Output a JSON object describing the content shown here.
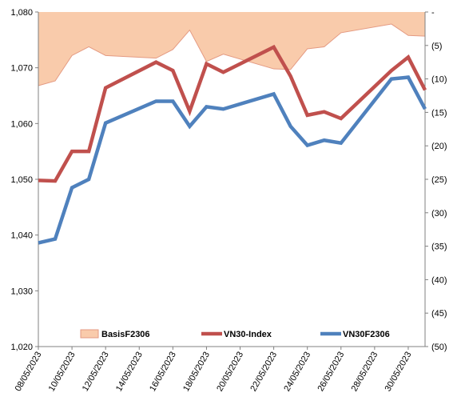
{
  "chart_data": {
    "type": "line",
    "title": "",
    "xlabel": "",
    "ylabel": "",
    "y2label": "",
    "grid": false,
    "legend_position": "bottom",
    "x": [
      "08/05/2023",
      "09/05/2023",
      "10/05/2023",
      "11/05/2023",
      "12/05/2023",
      "15/05/2023",
      "16/05/2023",
      "17/05/2023",
      "18/05/2023",
      "19/05/2023",
      "22/05/2023",
      "23/05/2023",
      "24/05/2023",
      "25/05/2023",
      "26/05/2023",
      "29/05/2023",
      "30/05/2023",
      "31/05/2023"
    ],
    "x_tick_labels": [
      "08/05/2023",
      "10/05/2023",
      "12/05/2023",
      "14/05/2023",
      "16/05/2023",
      "18/05/2023",
      "20/05/2023",
      "22/05/2023",
      "24/05/2023",
      "26/05/2023",
      "28/05/2023",
      "30/05/2023"
    ],
    "x_range": [
      "08/05/2023",
      "31/05/2023"
    ],
    "ylim_left": [
      1020,
      1080
    ],
    "y_ticks_left": [
      "1,020",
      "1,030",
      "1,040",
      "1,050",
      "1,060",
      "1,070",
      "1,080"
    ],
    "ylim_right": [
      -50,
      0
    ],
    "y_ticks_right": [
      "(50)",
      "(45)",
      "(40)",
      "(35)",
      "(30)",
      "(25)",
      "(20)",
      "(15)",
      "(10)",
      "(5)",
      "-"
    ],
    "series": [
      {
        "name": "BasisF2306",
        "type": "area",
        "axis": "right",
        "color": "#f9cbab",
        "edge_color": "#e49a82",
        "x": [
          "08/05/2023",
          "09/05/2023",
          "10/05/2023",
          "11/05/2023",
          "12/05/2023",
          "15/05/2023",
          "16/05/2023",
          "17/05/2023",
          "18/05/2023",
          "19/05/2023",
          "22/05/2023",
          "23/05/2023",
          "24/05/2023",
          "25/05/2023",
          "26/05/2023",
          "29/05/2023",
          "30/05/2023",
          "31/05/2023"
        ],
        "values": [
          -11,
          -10.3,
          -6.5,
          -5.2,
          -6.5,
          -6.9,
          -5.6,
          -2.7,
          -7.4,
          -6.3,
          -8.5,
          -8.6,
          -5.5,
          -5.2,
          -3.1,
          -1.8,
          -3.5,
          -3.6
        ]
      },
      {
        "name": "VN30-Index",
        "type": "line",
        "axis": "left",
        "color": "#c0504d",
        "x": [
          "08/05/2023",
          "09/05/2023",
          "10/05/2023",
          "11/05/2023",
          "12/05/2023",
          "15/05/2023",
          "16/05/2023",
          "17/05/2023",
          "18/05/2023",
          "19/05/2023",
          "22/05/2023",
          "23/05/2023",
          "24/05/2023",
          "25/05/2023",
          "26/05/2023",
          "29/05/2023",
          "30/05/2023",
          "31/05/2023"
        ],
        "values": [
          1049.8,
          1049.7,
          1055.0,
          1055.0,
          1066.4,
          1071.0,
          1069.5,
          1062.2,
          1070.7,
          1069.2,
          1073.7,
          1068.5,
          1061.5,
          1062.1,
          1060.9,
          1069.5,
          1071.9,
          1066.0
        ]
      },
      {
        "name": "VN30F2306",
        "type": "line",
        "axis": "left",
        "color": "#4f81bd",
        "x": [
          "08/05/2023",
          "09/05/2023",
          "10/05/2023",
          "11/05/2023",
          "12/05/2023",
          "15/05/2023",
          "16/05/2023",
          "17/05/2023",
          "18/05/2023",
          "19/05/2023",
          "22/05/2023",
          "23/05/2023",
          "24/05/2023",
          "25/05/2023",
          "26/05/2023",
          "29/05/2023",
          "30/05/2023",
          "31/05/2023"
        ],
        "values": [
          1038.6,
          1039.3,
          1048.5,
          1050.0,
          1060.1,
          1064.0,
          1064.0,
          1059.5,
          1063.0,
          1062.6,
          1065.3,
          1059.5,
          1056.1,
          1057.0,
          1056.5,
          1068.0,
          1068.3,
          1062.6
        ]
      }
    ]
  }
}
